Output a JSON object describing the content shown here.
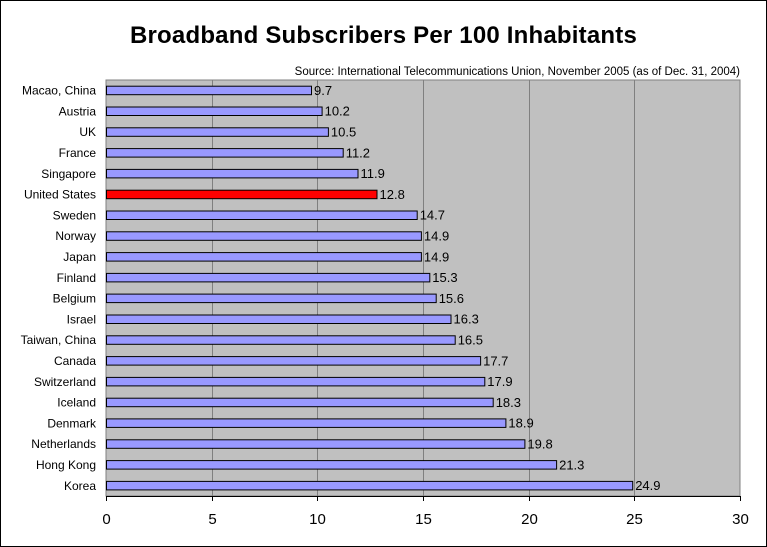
{
  "chart_data": {
    "type": "bar",
    "orientation": "horizontal",
    "title": "Broadband Subscribers Per 100 Inhabitants",
    "subtitle": "Source: International Telecommunications Union, November 2005 (as of Dec. 31, 2004)",
    "categories": [
      "Macao, China",
      "Austria",
      "UK",
      "France",
      "Singapore",
      "United States",
      "Sweden",
      "Norway",
      "Japan",
      "Finland",
      "Belgium",
      "Israel",
      "Taiwan, China",
      "Canada",
      "Switzerland",
      "Iceland",
      "Denmark",
      "Netherlands",
      "Hong Kong",
      "Korea"
    ],
    "values": [
      9.7,
      10.2,
      10.5,
      11.2,
      11.9,
      12.8,
      14.7,
      14.9,
      14.9,
      15.3,
      15.6,
      16.3,
      16.5,
      17.7,
      17.9,
      18.3,
      18.9,
      19.8,
      21.3,
      24.9
    ],
    "value_labels": [
      "9.7",
      "10.2",
      "10.5",
      "11.2",
      "11.9",
      "12.8",
      "14.7",
      "14.9",
      "14.9",
      "15.3",
      "15.6",
      "16.3",
      "16.5",
      "17.7",
      "17.9",
      "18.3",
      "18.9",
      "19.8",
      "21.3",
      "24.9"
    ],
    "highlight_category": "United States",
    "xlim": [
      0,
      30
    ],
    "xticks": [
      0,
      5,
      10,
      15,
      20,
      25,
      30
    ],
    "xlabel": "",
    "ylabel": "",
    "grid": "vertical",
    "legend": "none",
    "colors": {
      "bar": "#9999ff",
      "highlight": "#ff0000",
      "plot_background": "#c0c0c0",
      "gridline": "#808080",
      "outline": "#000000"
    }
  }
}
